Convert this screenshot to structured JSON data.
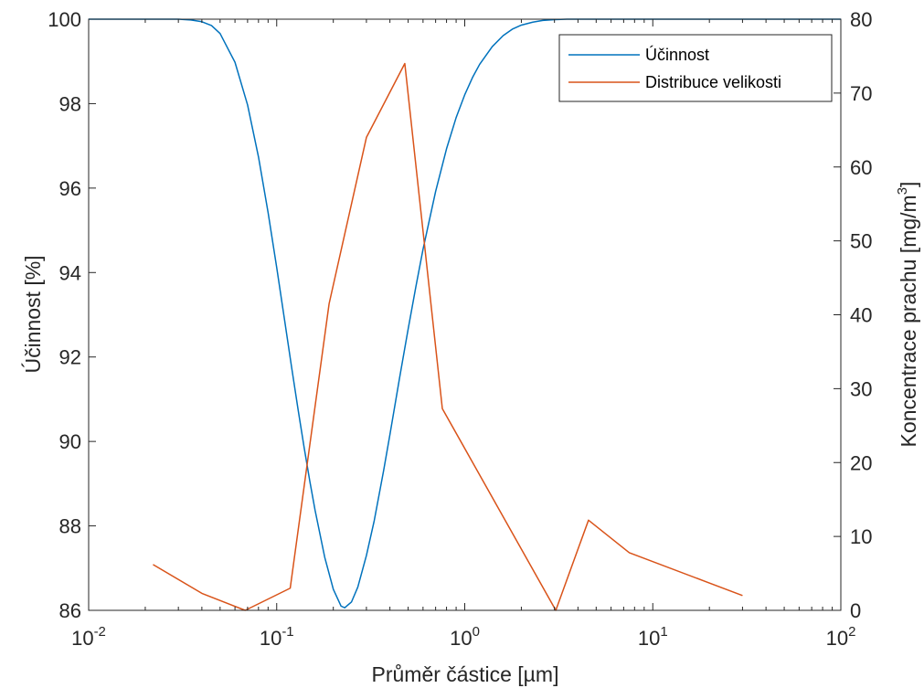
{
  "chart_data": {
    "type": "line",
    "title": "",
    "xlabel": "Průměr částice [µm]",
    "ylabel_left": "Účinnost [%]",
    "ylabel_right": "Koncentrace prachu [mg/m",
    "ylabel_right_sup": "3",
    "ylabel_right_close": "]",
    "x_scale": "log",
    "xlim": [
      0.01,
      100
    ],
    "ylim_left": [
      86,
      100
    ],
    "ylim_right": [
      0,
      80
    ],
    "x_ticks": [
      {
        "value": 0.01,
        "base": "10",
        "exp": "-2"
      },
      {
        "value": 0.1,
        "base": "10",
        "exp": "-1"
      },
      {
        "value": 1,
        "base": "10",
        "exp": "0"
      },
      {
        "value": 10,
        "base": "10",
        "exp": "1"
      },
      {
        "value": 100,
        "base": "10",
        "exp": "2"
      }
    ],
    "y_ticks_left": [
      "86",
      "88",
      "90",
      "92",
      "94",
      "96",
      "98",
      "100"
    ],
    "y_ticks_right": [
      "0",
      "10",
      "20",
      "30",
      "40",
      "50",
      "60",
      "70",
      "80"
    ],
    "grid": false,
    "legend_position": "top-right",
    "colors": {
      "efficiency": "#0072BD",
      "distribution": "#D95319",
      "axis": "#262626"
    },
    "series": [
      {
        "name": "Účinnost",
        "axis": "left",
        "x": [
          0.01,
          0.02,
          0.03,
          0.035,
          0.04,
          0.045,
          0.05,
          0.06,
          0.07,
          0.08,
          0.09,
          0.1,
          0.11,
          0.12,
          0.13,
          0.14,
          0.15,
          0.16,
          0.18,
          0.2,
          0.22,
          0.23,
          0.25,
          0.27,
          0.3,
          0.33,
          0.37,
          0.4,
          0.45,
          0.5,
          0.55,
          0.6,
          0.7,
          0.8,
          0.9,
          1.0,
          1.1,
          1.2,
          1.4,
          1.6,
          1.8,
          2.0,
          2.3,
          2.6,
          3.0,
          3.5,
          4.0,
          5.0,
          10,
          100
        ],
        "y": [
          100,
          100,
          100,
          99.98,
          99.94,
          99.85,
          99.66,
          98.98,
          97.97,
          96.74,
          95.42,
          94.12,
          92.89,
          91.76,
          90.75,
          89.85,
          89.06,
          88.37,
          87.26,
          86.5,
          86.1,
          86.06,
          86.2,
          86.55,
          87.3,
          88.12,
          89.3,
          90.16,
          91.5,
          92.66,
          93.67,
          94.55,
          95.92,
          96.93,
          97.67,
          98.21,
          98.62,
          98.93,
          99.35,
          99.61,
          99.77,
          99.86,
          99.93,
          99.97,
          99.99,
          100,
          100,
          100,
          100,
          100
        ]
      },
      {
        "name": "Distribuce velikosti",
        "axis": "right",
        "x": [
          0.022,
          0.04,
          0.068,
          0.118,
          0.19,
          0.3,
          0.48,
          0.76,
          3.05,
          4.55,
          7.5,
          30
        ],
        "y": [
          6.2,
          2.3,
          0,
          3.0,
          41.5,
          64,
          74,
          27.3,
          0,
          12.2,
          7.8,
          2.0
        ]
      }
    ]
  }
}
